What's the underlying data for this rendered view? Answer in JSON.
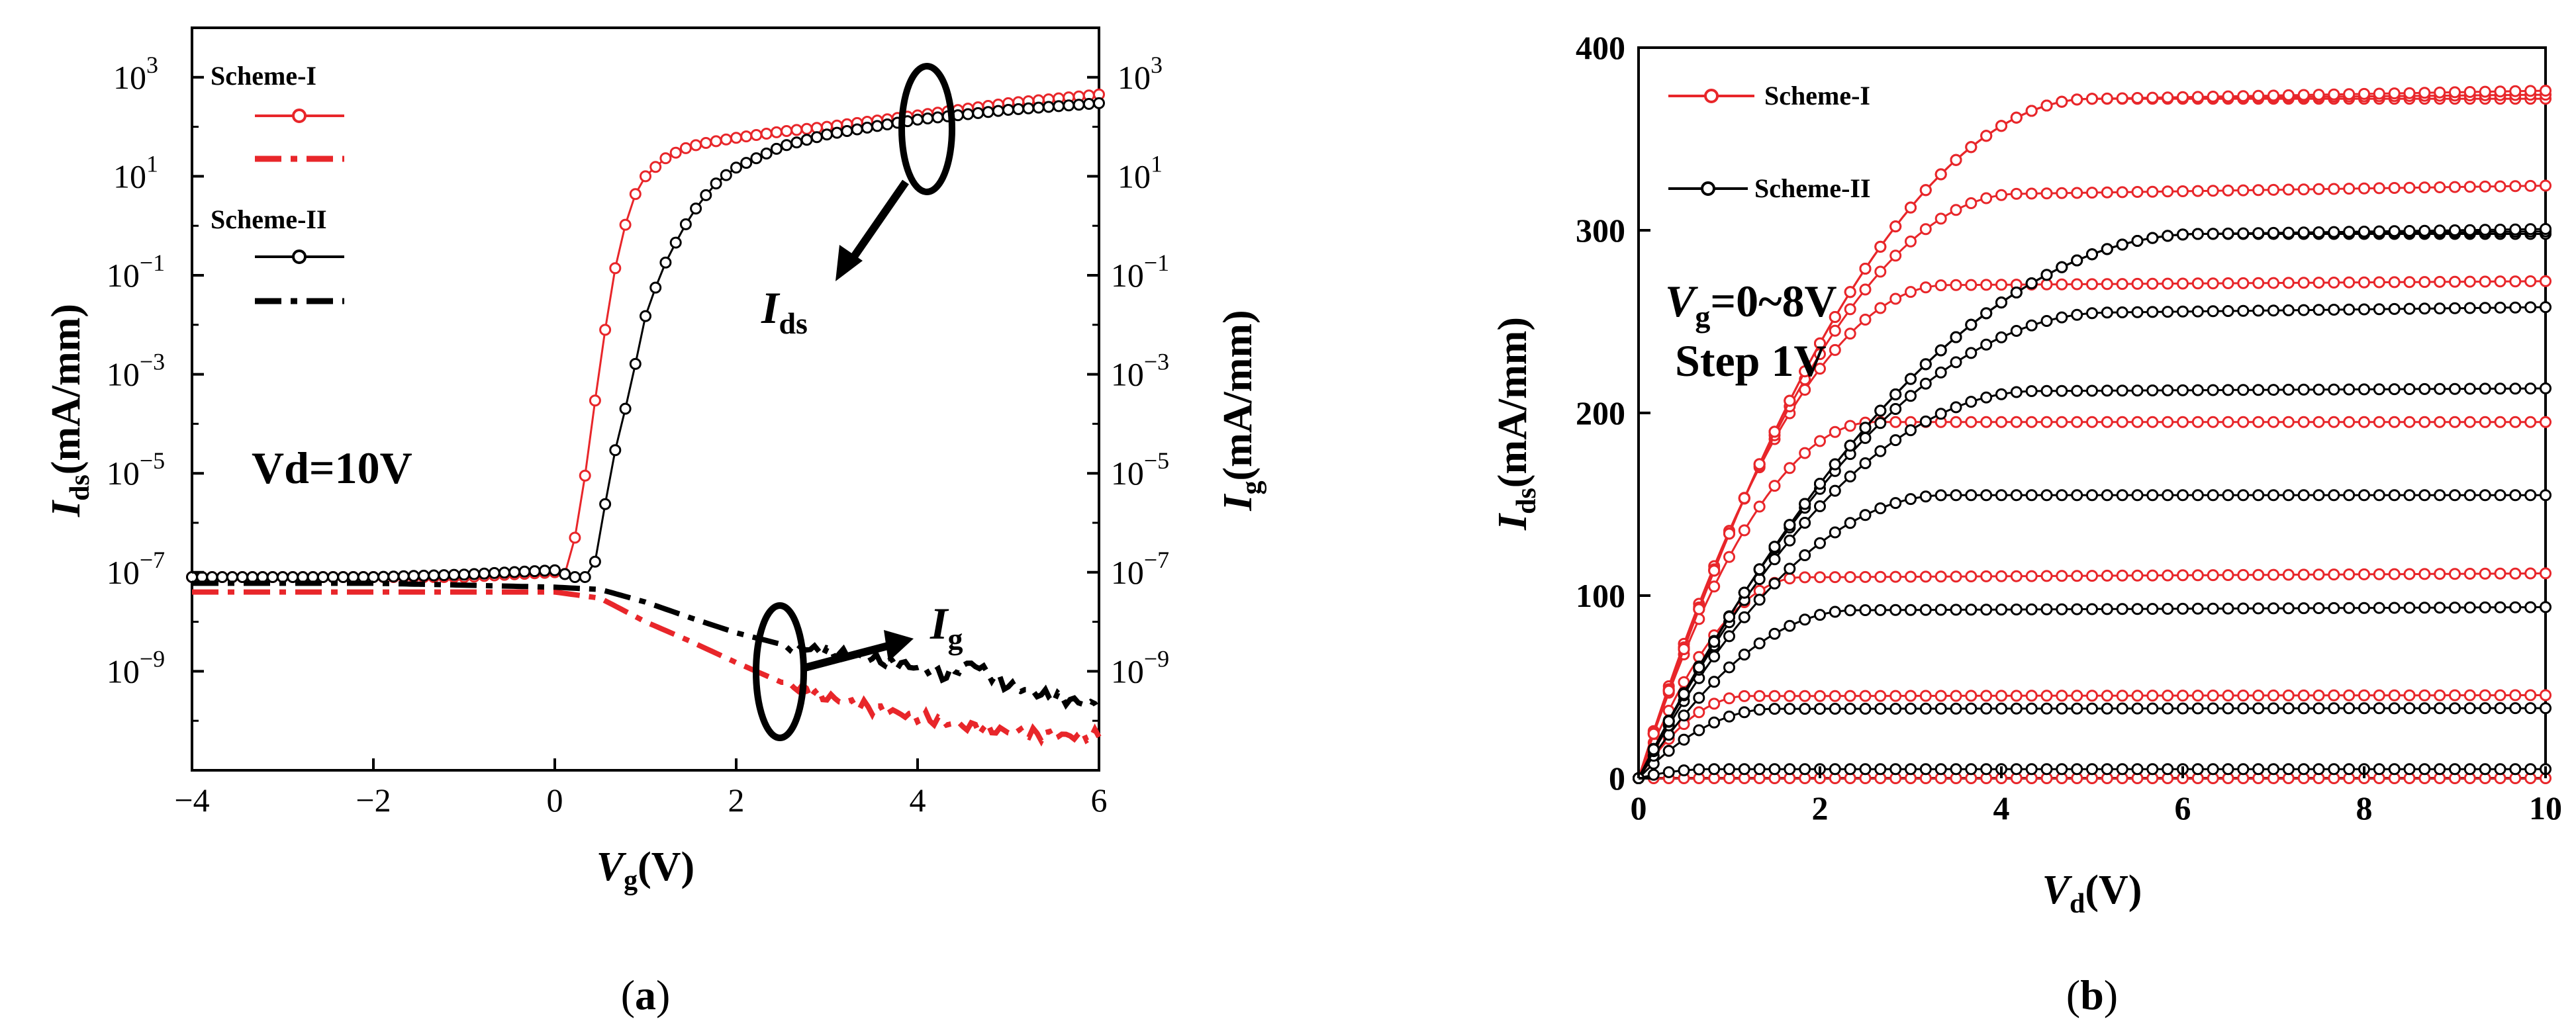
{
  "colors": {
    "scheme_1": "#e8262a",
    "scheme_2": "#000000"
  },
  "chart_data": [
    {
      "panel": "a",
      "type": "line",
      "caption": "a",
      "xlabel": "Vg(V)",
      "xlabel_main": "V",
      "xlabel_sub": "g",
      "xlabel_unit": "(V)",
      "ylabel_left_main": "I",
      "ylabel_left_sub": "ds",
      "ylabel_left_unit": "(mA/mm)",
      "ylabel_right_main": "I",
      "ylabel_right_sub": "g",
      "ylabel_right_unit": "(mA/mm)",
      "y_scale": "log",
      "xlim": [
        -4,
        6
      ],
      "ylim_exp": [
        -11,
        4
      ],
      "x_ticks": [
        "−4",
        "−2",
        "0",
        "2",
        "4",
        "6"
      ],
      "y_tick_exps": [
        -9,
        -7,
        -5,
        -3,
        -1,
        1,
        3
      ],
      "y_tick_base": "10",
      "y_tick_sups": [
        "−9",
        "−7",
        "−5",
        "−3",
        "−1",
        "1",
        "3"
      ],
      "annotations": {
        "vd": "Vd=10V",
        "ids_main": "I",
        "ids_sub": "ds",
        "ig_main": "I",
        "ig_sub": "g"
      },
      "legend": {
        "scheme_1": "Scheme-I",
        "scheme_2": "Scheme-II"
      },
      "series": [
        {
          "name": "Scheme-I Ids",
          "style": "line-circle",
          "color": "#e8262a",
          "x": [
            -4,
            -3,
            -2,
            -1,
            -0.5,
            0,
            0.1,
            0.2,
            0.3,
            0.4,
            0.5,
            0.6,
            0.7,
            0.8,
            0.9,
            1.0,
            1.2,
            1.4,
            1.6,
            2.0,
            2.5,
            3.0,
            3.5,
            4.0,
            5.0,
            6.0
          ],
          "y": [
            8e-08,
            8e-08,
            8e-08,
            8e-08,
            9e-08,
            1e-07,
            8e-08,
            3e-07,
            3e-06,
            8e-05,
            0.0015,
            0.03,
            0.3,
            1.5,
            5,
            10,
            22,
            35,
            45,
            60,
            80,
            100,
            130,
            170,
            300,
            450
          ]
        },
        {
          "name": "Scheme-I Ig",
          "style": "dash-dot",
          "color": "#e8262a",
          "x": [
            -4,
            -3,
            -2,
            -1,
            0,
            0.5,
            1.0,
            1.5,
            2.0,
            2.5,
            3.0,
            3.5,
            4.0,
            4.5,
            5.0,
            5.5,
            6.0
          ],
          "y": [
            4e-08,
            4e-08,
            4e-08,
            4e-08,
            4e-08,
            3e-08,
            1e-08,
            4e-09,
            1.5e-09,
            6e-10,
            3e-10,
            1.8e-10,
            1.2e-10,
            8e-11,
            6e-11,
            5e-11,
            5e-11
          ]
        },
        {
          "name": "Scheme-II Ids",
          "style": "line-circle",
          "color": "#000000",
          "x": [
            -4,
            -3,
            -2,
            -1,
            -0.5,
            0,
            0.2,
            0.4,
            0.5,
            0.6,
            0.7,
            0.8,
            0.9,
            1.0,
            1.1,
            1.2,
            1.4,
            1.6,
            1.8,
            2.0,
            2.5,
            3.0,
            3.5,
            4.0,
            5.0,
            6.0
          ],
          "y": [
            8e-08,
            8e-08,
            8e-08,
            9e-08,
            1e-07,
            1.1e-07,
            8e-08,
            8e-08,
            4e-07,
            1e-05,
            5e-05,
            0.0003,
            0.002,
            0.015,
            0.05,
            0.15,
            0.8,
            3,
            8,
            15,
            40,
            70,
            100,
            140,
            220,
            300
          ]
        },
        {
          "name": "Scheme-II Ig",
          "style": "dash-dot",
          "color": "#000000",
          "x": [
            -4,
            -3,
            -2,
            -1,
            0,
            0.5,
            1.0,
            1.5,
            2.0,
            2.5,
            3.0,
            3.5,
            4.0,
            4.3,
            4.6,
            5.0,
            5.5,
            6.0
          ],
          "y": [
            6e-08,
            6e-08,
            6e-08,
            5.5e-08,
            5e-08,
            4.5e-08,
            2.5e-08,
            1.2e-08,
            6e-09,
            3.5e-09,
            2.5e-09,
            1.8e-09,
            1.2e-09,
            8e-10,
            1.5e-09,
            5e-10,
            3e-10,
            2e-10
          ]
        }
      ]
    },
    {
      "panel": "b",
      "type": "line",
      "caption": "b",
      "xlabel": "Vd(V)",
      "xlabel_main": "V",
      "xlabel_sub": "d",
      "xlabel_unit": "(V)",
      "ylabel_main": "I",
      "ylabel_sub": "ds",
      "ylabel_unit": "(mA/mm)",
      "xlim": [
        0,
        10
      ],
      "ylim": [
        0,
        400
      ],
      "x_ticks": [
        0,
        2,
        4,
        6,
        8,
        10
      ],
      "y_ticks": [
        0,
        100,
        200,
        300,
        400
      ],
      "annotations": {
        "vg_main": "V",
        "vg_sub": "g",
        "vg_rest": "=0~8V",
        "step": "Step 1V"
      },
      "legend": {
        "scheme_1": "Scheme-I",
        "scheme_2": "Scheme-II"
      },
      "series": [
        {
          "name": "Scheme-I",
          "color": "#e8262a",
          "isat": [
            0,
            45,
            110,
            195,
            270,
            320,
            372,
            372,
            372
          ],
          "knee": [
            0.8,
            1.2,
            1.8,
            2.6,
            3.4,
            4.2,
            5.0,
            5.0,
            5.0
          ]
        },
        {
          "name": "Scheme-II",
          "color": "#000000",
          "isat": [
            5,
            38,
            92,
            155,
            212,
            255,
            298,
            298,
            298
          ],
          "knee": [
            0.8,
            1.5,
            2.4,
            3.4,
            4.4,
            5.2,
            6.2,
            6.2,
            6.2
          ]
        }
      ]
    }
  ]
}
